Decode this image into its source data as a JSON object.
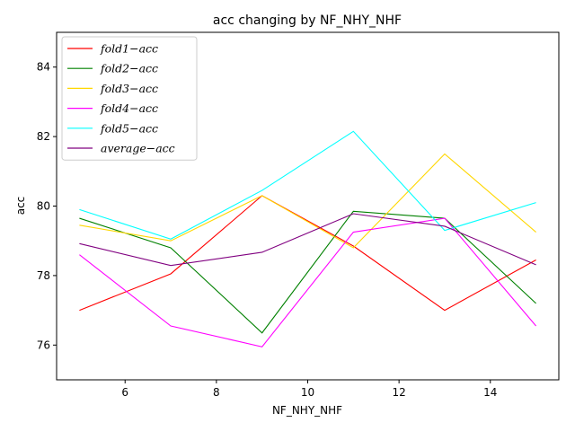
{
  "chart_data": {
    "type": "line",
    "title": "acc changing by NF_NHY_NHF",
    "xlabel": "NF_NHY_NHF",
    "ylabel": "acc",
    "xlim": [
      4.5,
      15.5
    ],
    "ylim": [
      75,
      85
    ],
    "xticks": [
      6,
      8,
      10,
      12,
      14
    ],
    "yticks": [
      76,
      78,
      80,
      82,
      84
    ],
    "grid": false,
    "legend_position": "top-left",
    "x": [
      5,
      7,
      9,
      11,
      13,
      15
    ],
    "series": [
      {
        "name": "fold1−acc",
        "color": "#ff0000",
        "values": [
          77.0,
          78.05,
          80.3,
          78.85,
          77.0,
          78.45
        ]
      },
      {
        "name": "fold2−acc",
        "color": "#008000",
        "values": [
          79.65,
          78.8,
          76.35,
          79.85,
          79.65,
          77.2
        ]
      },
      {
        "name": "fold3−acc",
        "color": "#ffd700",
        "values": [
          79.45,
          79.0,
          80.3,
          78.8,
          81.5,
          79.25
        ]
      },
      {
        "name": "fold4−acc",
        "color": "#ff00ff",
        "values": [
          78.6,
          76.55,
          75.95,
          79.25,
          79.65,
          76.55
        ]
      },
      {
        "name": "fold5−acc",
        "color": "#00ffff",
        "values": [
          79.9,
          79.05,
          80.45,
          82.15,
          79.3,
          80.1
        ]
      },
      {
        "name": "average−acc",
        "color": "#800080",
        "values": [
          78.92,
          78.29,
          78.67,
          79.78,
          79.42,
          78.31
        ]
      }
    ]
  }
}
